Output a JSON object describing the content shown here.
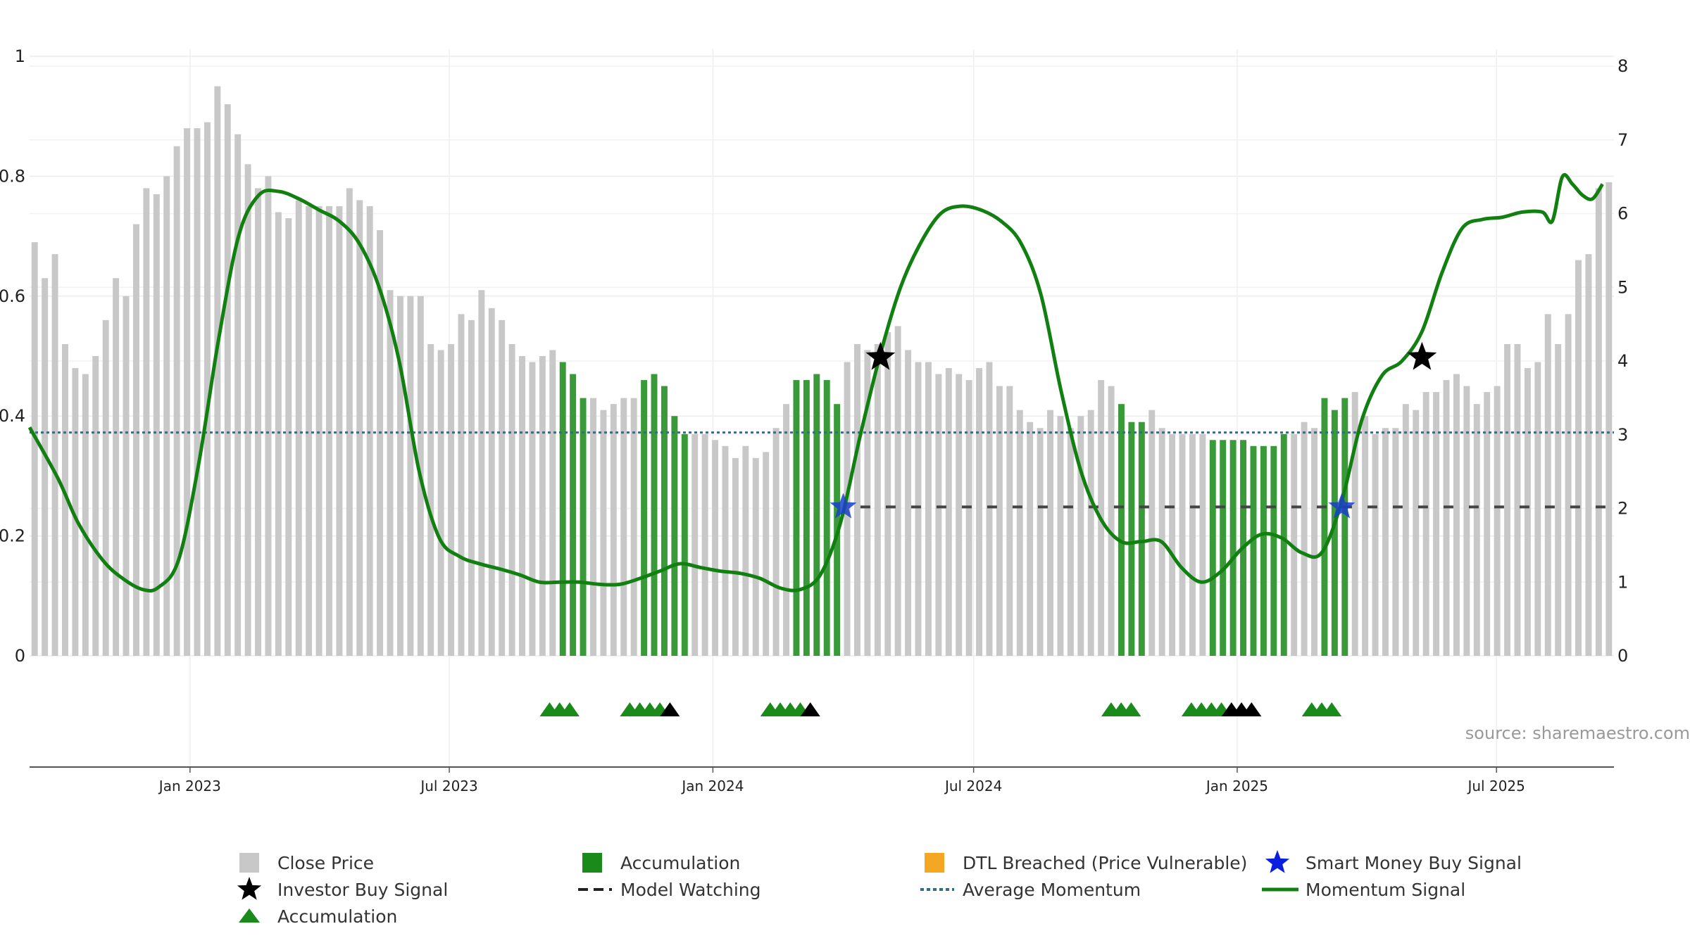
{
  "chart_data": {
    "type": "bar",
    "source": "source: sharemaestro.com",
    "yaxis_left": {
      "ticks": [
        "0",
        "0.2",
        "0.4",
        "0.6",
        "0.8",
        "1"
      ],
      "range": [
        0,
        1
      ]
    },
    "yaxis_right": {
      "ticks": [
        "0",
        "1",
        "2",
        "3",
        "4",
        "5",
        "6",
        "7",
        "8"
      ],
      "range": [
        0,
        8
      ]
    },
    "x_ticks": [
      {
        "date": "2023-01-01",
        "label": "Jan 2023"
      },
      {
        "date": "2023-07-01",
        "label": "Jul 2023"
      },
      {
        "date": "2024-01-01",
        "label": "Jan 2024"
      },
      {
        "date": "2024-07-01",
        "label": "Jul 2024"
      },
      {
        "date": "2025-01-01",
        "label": "Jan 2025"
      },
      {
        "date": "2025-07-01",
        "label": "Jul 2025"
      }
    ],
    "x_range": [
      "2022-09-11",
      "2025-09-21"
    ],
    "grid": true,
    "colors": {
      "close_price": "#c8c8c8",
      "accumulation_bar": "#3a9a3a",
      "accumulation_triangle": "#1a8a1a",
      "momentum_line": "#118011",
      "momentum_line_faded": "#5a9a5a",
      "average_momentum": "#2d6f8f",
      "model_watching": "#444444",
      "investor_star": "#000000",
      "smart_money_star": "#1a3fc9",
      "dtl_breached": "#f5a623"
    },
    "close_price_values": [
      0.69,
      0.63,
      0.67,
      0.52,
      0.48,
      0.47,
      0.5,
      0.56,
      0.63,
      0.6,
      0.72,
      0.78,
      0.77,
      0.8,
      0.85,
      0.88,
      0.88,
      0.89,
      0.95,
      0.92,
      0.87,
      0.82,
      0.78,
      0.8,
      0.74,
      0.73,
      0.76,
      0.75,
      0.75,
      0.75,
      0.75,
      0.78,
      0.76,
      0.75,
      0.71,
      0.61,
      0.6,
      0.6,
      0.6,
      0.52,
      0.51,
      0.52,
      0.57,
      0.56,
      0.61,
      0.58,
      0.56,
      0.52,
      0.5,
      0.49,
      0.5,
      0.51,
      0.49,
      0.47,
      0.43,
      0.43,
      0.41,
      0.42,
      0.43,
      0.43,
      0.46,
      0.47,
      0.45,
      0.4,
      0.37,
      0.37,
      0.37,
      0.36,
      0.35,
      0.33,
      0.35,
      0.33,
      0.34,
      0.38,
      0.42,
      0.46,
      0.46,
      0.47,
      0.46,
      0.42,
      0.49,
      0.52,
      0.51,
      0.52,
      0.54,
      0.55,
      0.51,
      0.49,
      0.49,
      0.47,
      0.48,
      0.47,
      0.46,
      0.48,
      0.49,
      0.45,
      0.45,
      0.41,
      0.39,
      0.38,
      0.41,
      0.4,
      0.38,
      0.4,
      0.41,
      0.46,
      0.45,
      0.42,
      0.39,
      0.39,
      0.41,
      0.38,
      0.37,
      0.37,
      0.37,
      0.37,
      0.36,
      0.36,
      0.36,
      0.36,
      0.35,
      0.35,
      0.35,
      0.37,
      0.37,
      0.39,
      0.38,
      0.43,
      0.41,
      0.43,
      0.44,
      0.4,
      0.37,
      0.38,
      0.38,
      0.42,
      0.41,
      0.44,
      0.44,
      0.46,
      0.47,
      0.45,
      0.42,
      0.44,
      0.45,
      0.52,
      0.52,
      0.48,
      0.49,
      0.57,
      0.52,
      0.57,
      0.66,
      0.67,
      0.78,
      0.79
    ],
    "accumulation_bar_indices": [
      52,
      53,
      54,
      60,
      61,
      62,
      63,
      64,
      75,
      76,
      77,
      78,
      79,
      107,
      108,
      109,
      116,
      117,
      118,
      119,
      120,
      121,
      122,
      123,
      127,
      128,
      129
    ],
    "momentum_signal": [
      [
        "2022-09-11",
        3.1
      ],
      [
        "2022-10-01",
        2.4
      ],
      [
        "2022-10-15",
        1.8
      ],
      [
        "2022-11-01",
        1.3
      ],
      [
        "2022-11-15",
        1.05
      ],
      [
        "2022-11-29",
        0.9
      ],
      [
        "2022-12-10",
        0.93
      ],
      [
        "2022-12-24",
        1.3
      ],
      [
        "2023-01-07",
        2.6
      ],
      [
        "2023-01-21",
        4.3
      ],
      [
        "2023-02-04",
        5.7
      ],
      [
        "2023-02-18",
        6.25
      ],
      [
        "2023-03-04",
        6.3
      ],
      [
        "2023-03-18",
        6.2
      ],
      [
        "2023-04-01",
        6.05
      ],
      [
        "2023-04-15",
        5.9
      ],
      [
        "2023-04-29",
        5.6
      ],
      [
        "2023-05-13",
        5.0
      ],
      [
        "2023-05-27",
        4.0
      ],
      [
        "2023-06-10",
        2.5
      ],
      [
        "2023-06-24",
        1.6
      ],
      [
        "2023-07-08",
        1.35
      ],
      [
        "2023-07-22",
        1.25
      ],
      [
        "2023-08-05",
        1.18
      ],
      [
        "2023-08-19",
        1.1
      ],
      [
        "2023-09-02",
        1.0
      ],
      [
        "2023-09-16",
        1.0
      ],
      [
        "2023-09-30",
        1.0
      ],
      [
        "2023-10-14",
        0.97
      ],
      [
        "2023-10-28",
        0.97
      ],
      [
        "2023-11-11",
        1.05
      ],
      [
        "2023-11-25",
        1.15
      ],
      [
        "2023-12-09",
        1.25
      ],
      [
        "2023-12-23",
        1.2
      ],
      [
        "2024-01-06",
        1.15
      ],
      [
        "2024-01-20",
        1.12
      ],
      [
        "2024-02-03",
        1.05
      ],
      [
        "2024-02-17",
        0.92
      ],
      [
        "2024-03-02",
        0.9
      ],
      [
        "2024-03-16",
        1.1
      ],
      [
        "2024-03-30",
        1.8
      ],
      [
        "2024-04-13",
        3.0
      ],
      [
        "2024-04-27",
        4.1
      ],
      [
        "2024-05-11",
        5.0
      ],
      [
        "2024-05-25",
        5.6
      ],
      [
        "2024-06-08",
        6.0
      ],
      [
        "2024-06-22",
        6.1
      ],
      [
        "2024-07-06",
        6.05
      ],
      [
        "2024-07-20",
        5.9
      ],
      [
        "2024-08-03",
        5.6
      ],
      [
        "2024-08-17",
        4.9
      ],
      [
        "2024-08-31",
        3.6
      ],
      [
        "2024-09-14",
        2.5
      ],
      [
        "2024-09-28",
        1.85
      ],
      [
        "2024-10-12",
        1.55
      ],
      [
        "2024-10-26",
        1.55
      ],
      [
        "2024-11-09",
        1.55
      ],
      [
        "2024-11-23",
        1.2
      ],
      [
        "2024-12-07",
        1.0
      ],
      [
        "2024-12-21",
        1.15
      ],
      [
        "2025-01-04",
        1.45
      ],
      [
        "2025-01-18",
        1.65
      ],
      [
        "2025-02-01",
        1.6
      ],
      [
        "2025-02-15",
        1.4
      ],
      [
        "2025-03-01",
        1.4
      ],
      [
        "2025-03-15",
        2.1
      ],
      [
        "2025-03-29",
        3.2
      ],
      [
        "2025-04-12",
        3.8
      ],
      [
        "2025-04-26",
        4.0
      ],
      [
        "2025-05-10",
        4.4
      ],
      [
        "2025-05-24",
        5.2
      ],
      [
        "2025-06-07",
        5.8
      ],
      [
        "2025-06-21",
        5.92
      ],
      [
        "2025-07-05",
        5.95
      ],
      [
        "2025-07-19",
        6.02
      ],
      [
        "2025-08-02",
        6.02
      ],
      [
        "2025-08-09",
        5.9
      ],
      [
        "2025-08-16",
        6.5
      ],
      [
        "2025-08-23",
        6.4
      ],
      [
        "2025-08-30",
        6.25
      ],
      [
        "2025-09-06",
        6.2
      ],
      [
        "2025-09-13",
        6.4
      ]
    ],
    "average_momentum": 3.03,
    "model_watching_segments": [
      {
        "from": "2024-04-13",
        "to": "2025-09-21",
        "value": 2.02
      }
    ],
    "smart_money_buy_signals": [
      {
        "date": "2024-04-01",
        "value": 2.02
      },
      {
        "date": "2025-03-15",
        "value": 2.02
      }
    ],
    "investor_buy_signals": [
      {
        "date": "2024-04-27",
        "value": 4.05
      },
      {
        "date": "2025-05-10",
        "value": 4.05
      }
    ],
    "accumulation_triangles": [
      {
        "date": "2023-09-09",
        "color": "green"
      },
      {
        "date": "2023-09-16",
        "color": "green"
      },
      {
        "date": "2023-09-23",
        "color": "green"
      },
      {
        "date": "2023-11-04",
        "color": "green"
      },
      {
        "date": "2023-11-11",
        "color": "green"
      },
      {
        "date": "2023-11-18",
        "color": "green"
      },
      {
        "date": "2023-11-25",
        "color": "green"
      },
      {
        "date": "2023-12-02",
        "color": "black"
      },
      {
        "date": "2024-02-10",
        "color": "green"
      },
      {
        "date": "2024-02-17",
        "color": "green"
      },
      {
        "date": "2024-02-24",
        "color": "green"
      },
      {
        "date": "2024-03-02",
        "color": "green"
      },
      {
        "date": "2024-03-09",
        "color": "black"
      },
      {
        "date": "2024-10-05",
        "color": "green"
      },
      {
        "date": "2024-10-12",
        "color": "green"
      },
      {
        "date": "2024-10-19",
        "color": "green"
      },
      {
        "date": "2024-11-30",
        "color": "green"
      },
      {
        "date": "2024-12-07",
        "color": "green"
      },
      {
        "date": "2024-12-14",
        "color": "green"
      },
      {
        "date": "2024-12-21",
        "color": "green"
      },
      {
        "date": "2024-12-28",
        "color": "black"
      },
      {
        "date": "2025-01-04",
        "color": "black"
      },
      {
        "date": "2025-01-11",
        "color": "black"
      },
      {
        "date": "2025-02-22",
        "color": "green"
      },
      {
        "date": "2025-03-01",
        "color": "green"
      },
      {
        "date": "2025-03-08",
        "color": "green"
      }
    ]
  },
  "legend": {
    "close_price": "Close Price",
    "accumulation_bar": "Accumulation",
    "dtl_breached": "DTL Breached (Price Vulnerable)",
    "smart_money": "Smart Money Buy Signal",
    "investor_buy": "Investor Buy Signal",
    "model_watching": "Model Watching",
    "average_momentum": "Average Momentum",
    "momentum_signal": "Momentum Signal",
    "accumulation_marker": "Accumulation"
  }
}
